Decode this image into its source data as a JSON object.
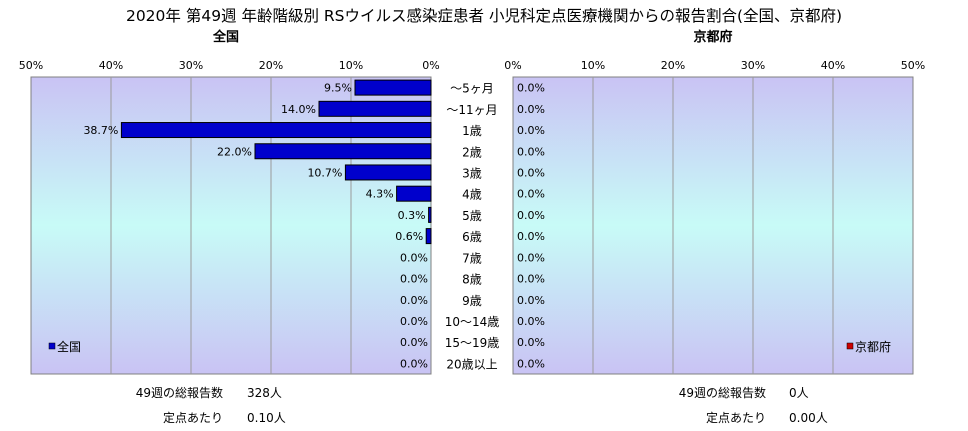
{
  "chart_data": {
    "type": "bar",
    "title": "2020年 第49週 年齢階級別 RSウイルス感染症患者 小児科定点医療機関からの報告割合(全国、京都府)",
    "categories": [
      "～5ヶ月",
      "～11ヶ月",
      "1歳",
      "2歳",
      "3歳",
      "4歳",
      "5歳",
      "6歳",
      "7歳",
      "8歳",
      "9歳",
      "10～14歳",
      "15～19歳",
      "20歳以上"
    ],
    "xlim": [
      0,
      50
    ],
    "ticks": [
      "0%",
      "10%",
      "20%",
      "30%",
      "40%",
      "50%"
    ],
    "grid": true,
    "panels": [
      {
        "name": "全国",
        "direction": "left",
        "color": "#0000cc",
        "values": [
          9.5,
          14.0,
          38.7,
          22.0,
          10.7,
          4.3,
          0.3,
          0.6,
          0.0,
          0.0,
          0.0,
          0.0,
          0.0,
          0.0
        ],
        "labels": [
          "9.5%",
          "14.0%",
          "38.7%",
          "22.0%",
          "10.7%",
          "4.3%",
          "0.3%",
          "0.6%",
          "0.0%",
          "0.0%",
          "0.0%",
          "0.0%",
          "0.0%",
          "0.0%"
        ],
        "legend": "全国",
        "legend_position": "bottom-left",
        "stats": [
          {
            "label": "49週の総報告数",
            "value": "328人"
          },
          {
            "label": "定点あたり",
            "value": "0.10人"
          }
        ]
      },
      {
        "name": "京都府",
        "direction": "right",
        "color": "#cc0000",
        "values": [
          0,
          0,
          0,
          0,
          0,
          0,
          0,
          0,
          0,
          0,
          0,
          0,
          0,
          0
        ],
        "labels": [
          "0.0%",
          "0.0%",
          "0.0%",
          "0.0%",
          "0.0%",
          "0.0%",
          "0.0%",
          "0.0%",
          "0.0%",
          "0.0%",
          "0.0%",
          "0.0%",
          "0.0%",
          "0.0%"
        ],
        "legend": "京都府",
        "legend_position": "bottom-right",
        "stats": [
          {
            "label": "49週の総報告数",
            "value": "0人"
          },
          {
            "label": "定点あたり",
            "value": "0.00人"
          }
        ]
      }
    ]
  }
}
